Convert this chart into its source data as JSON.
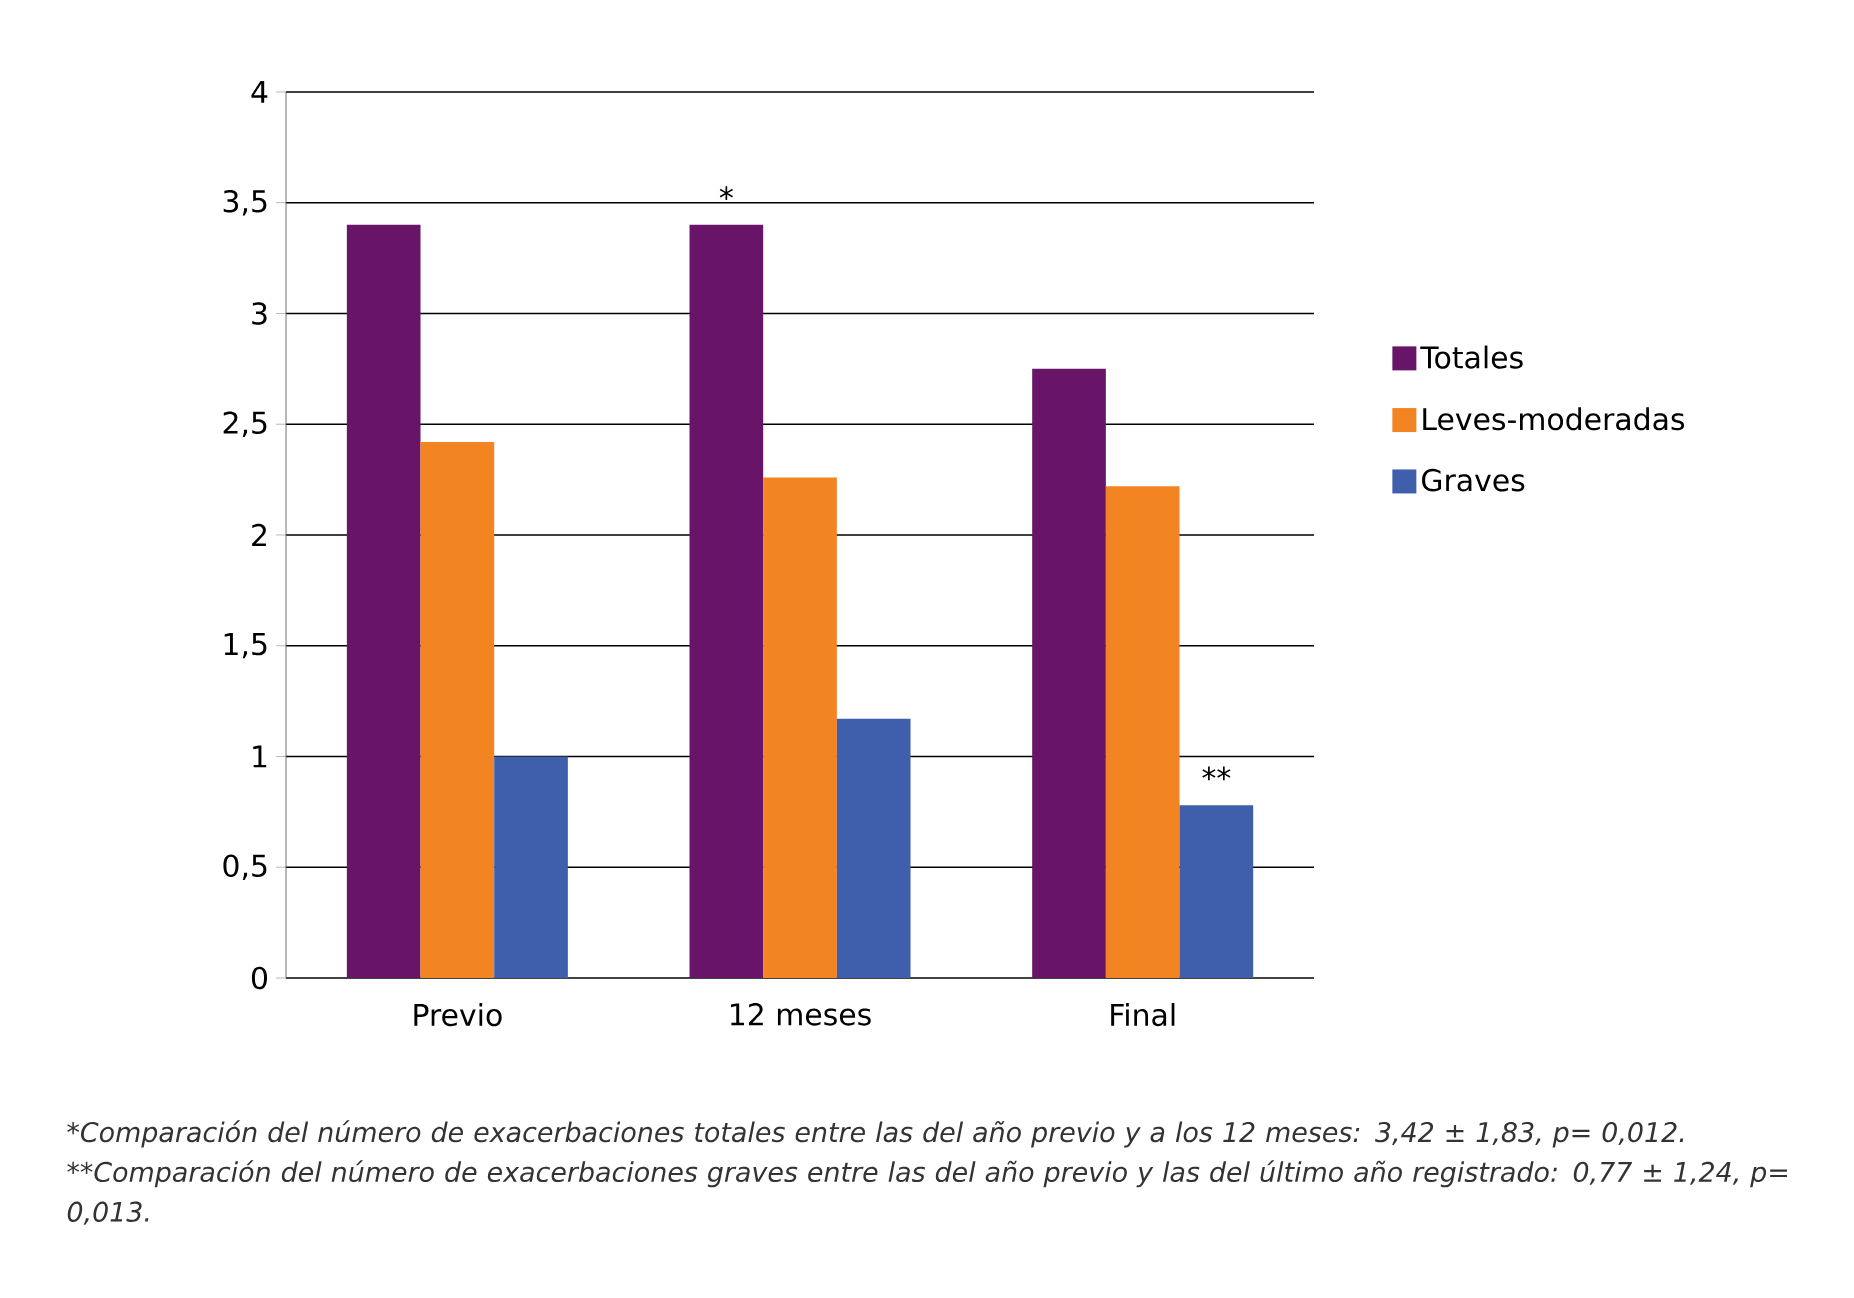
{
  "chart_data": {
    "type": "bar",
    "categories": [
      "Previo",
      "12 meses",
      "Final"
    ],
    "series": [
      {
        "name": "Totales",
        "color": "#681468",
        "values": [
          3.4,
          3.4,
          2.75
        ],
        "value_labels": [
          null,
          "*",
          null
        ]
      },
      {
        "name": "Leves-moderadas",
        "color": "#f28522",
        "values": [
          2.42,
          2.26,
          2.22
        ]
      },
      {
        "name": "Graves",
        "color": "#3f5fad",
        "values": [
          1.0,
          1.17,
          0.78
        ],
        "value_labels": [
          null,
          null,
          "**"
        ]
      }
    ],
    "ylim": [
      0,
      4
    ],
    "yticks": [
      0,
      {
        "value": 0.5,
        "label": "0,5"
      },
      1,
      {
        "value": 1.5,
        "label": "1,5"
      },
      2,
      {
        "value": 2.5,
        "label": "2,5"
      },
      3,
      {
        "value": 3.5,
        "label": "3,5"
      },
      4
    ],
    "grid": "y",
    "legend": "right",
    "annotations": [
      "*Comparación del número de exacerbaciones totales entre las del año previo y a los 12 meses: 3,42 ± 1,83, p= 0,012. **Comparación del número de exacerbaciones graves entre las del año previo y las del último año registrado: 0,77 ± 1,24, p= 0,013."
    ]
  }
}
